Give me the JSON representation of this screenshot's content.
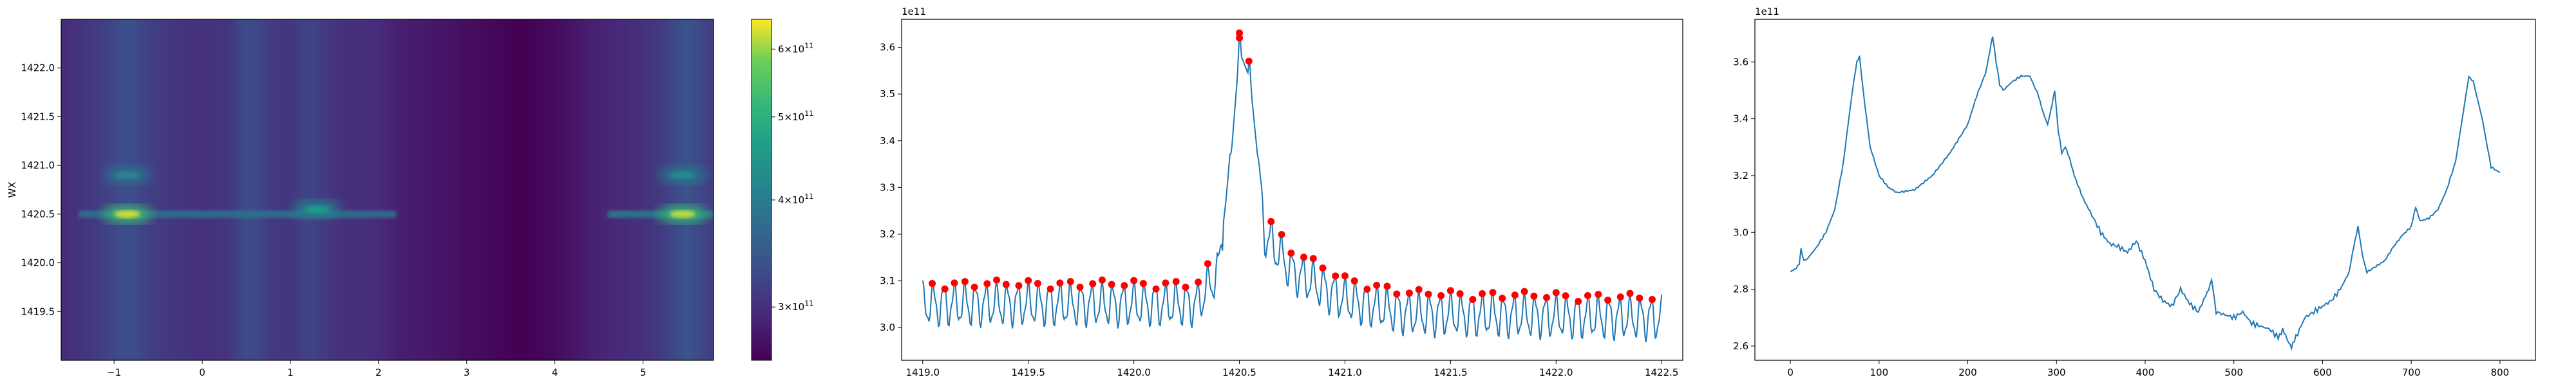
{
  "chart_data": [
    {
      "type": "heatmap",
      "ylabel": "WX",
      "xlabel": "",
      "title": "",
      "x_range": [
        -1.6,
        5.8
      ],
      "y_range": [
        1419.0,
        1422.5
      ],
      "x_ticks": [
        -1,
        0,
        1,
        2,
        3,
        4,
        5
      ],
      "x_tick_labels": [
        "−1",
        "0",
        "1",
        "2",
        "3",
        "4",
        "5"
      ],
      "y_ticks": [
        1419.5,
        1420.0,
        1420.5,
        1421.0,
        1421.5,
        1422.0
      ],
      "y_tick_labels": [
        "1419.5",
        "1420.0",
        "1420.5",
        "1421.0",
        "1421.5",
        "1422.0"
      ],
      "colormap": "viridis",
      "colorbar": {
        "scale": "log",
        "range": [
          260000000000.0,
          650000000000.0
        ],
        "ticks": [
          300000000000.0,
          400000000000.0,
          500000000000.0,
          600000000000.0
        ],
        "tick_labels": [
          {
            "mantissa": "3×10",
            "exp": "11"
          },
          {
            "mantissa": "4×10",
            "exp": "11"
          },
          {
            "mantissa": "5×10",
            "exp": "11"
          },
          {
            "mantissa": "6×10",
            "exp": "11"
          }
        ]
      },
      "column_profile": {
        "x": [
          -1.6,
          -1.2,
          -1.0,
          -0.85,
          -0.6,
          -0.3,
          0.0,
          0.3,
          0.5,
          0.6,
          0.8,
          1.0,
          1.2,
          1.4,
          1.6,
          1.8,
          2.0,
          2.2,
          2.5,
          2.8,
          3.0,
          3.3,
          3.6,
          3.9,
          4.2,
          4.4,
          4.6,
          4.8,
          5.0,
          5.2,
          5.4,
          5.5,
          5.6,
          5.8
        ],
        "value": [
          295000000000.0,
          310000000000.0,
          325000000000.0,
          335000000000.0,
          315000000000.0,
          305000000000.0,
          300000000000.0,
          305000000000.0,
          330000000000.0,
          325000000000.0,
          310000000000.0,
          305000000000.0,
          320000000000.0,
          310000000000.0,
          300000000000.0,
          300000000000.0,
          295000000000.0,
          285000000000.0,
          280000000000.0,
          275000000000.0,
          270000000000.0,
          265000000000.0,
          260000000000.0,
          265000000000.0,
          275000000000.0,
          285000000000.0,
          290000000000.0,
          295000000000.0,
          300000000000.0,
          310000000000.0,
          330000000000.0,
          340000000000.0,
          330000000000.0,
          310000000000.0
        ]
      },
      "hotspots": [
        {
          "x": -0.85,
          "y": 1420.5,
          "value": 630000000000.0
        },
        {
          "x": -0.85,
          "y": 1420.9,
          "value": 420000000000.0
        },
        {
          "x": 1.3,
          "y": 1420.55,
          "value": 460000000000.0
        },
        {
          "x": 5.45,
          "y": 1420.5,
          "value": 620000000000.0
        },
        {
          "x": 5.45,
          "y": 1420.9,
          "value": 430000000000.0
        }
      ]
    },
    {
      "type": "line",
      "title": "",
      "xlabel": "",
      "ylabel": "",
      "offset_label": "1e11",
      "xlim": [
        1418.9,
        1422.6
      ],
      "ylim": [
        293000000000.0,
        366000000000.0
      ],
      "x_ticks": [
        1419.0,
        1419.5,
        1420.0,
        1420.5,
        1421.0,
        1421.5,
        1422.0,
        1422.5
      ],
      "x_tick_labels": [
        "1419.0",
        "1419.5",
        "1420.0",
        "1420.5",
        "1421.0",
        "1421.5",
        "1422.0",
        "1422.5"
      ],
      "y_ticks": [
        300000000000.0,
        310000000000.0,
        320000000000.0,
        330000000000.0,
        340000000000.0,
        350000000000.0,
        360000000000.0
      ],
      "y_tick_labels": [
        "3.0",
        "3.1",
        "3.2",
        "3.3",
        "3.4",
        "3.5",
        "3.6"
      ],
      "series_color": "#1f77b4",
      "marker_color": "#ff0000",
      "series": [
        {
          "x_start": 1419.0,
          "x_end": 1422.5,
          "oscillation_period": 0.05,
          "baseline": [
            [
              1419.0,
              305000000000.0
            ],
            [
              1420.3,
              305000000000.0
            ],
            [
              1420.4,
              312000000000.0
            ],
            [
              1420.46,
              335000000000.0
            ],
            [
              1420.5,
              358000000000.0
            ],
            [
              1420.55,
              352000000000.0
            ],
            [
              1420.62,
              320000000000.0
            ],
            [
              1420.75,
              312000000000.0
            ],
            [
              1421.0,
              306000000000.0
            ],
            [
              1421.3,
              303000000000.0
            ],
            [
              1422.5,
              302000000000.0
            ]
          ],
          "amplitude": 4000000000.0,
          "peak": {
            "x": 1420.5,
            "y": 362000000000.0
          }
        }
      ]
    },
    {
      "type": "line",
      "title": "",
      "xlabel": "",
      "ylabel": "",
      "offset_label": "1e11",
      "xlim": [
        -40,
        840
      ],
      "ylim": [
        255000000000.0,
        375000000000.0
      ],
      "x_ticks": [
        0,
        100,
        200,
        300,
        400,
        500,
        600,
        700,
        800
      ],
      "x_tick_labels": [
        "0",
        "100",
        "200",
        "300",
        "400",
        "500",
        "600",
        "700",
        "800"
      ],
      "y_ticks": [
        260000000000.0,
        280000000000.0,
        300000000000.0,
        320000000000.0,
        340000000000.0,
        360000000000.0
      ],
      "y_tick_labels": [
        "2.6",
        "2.8",
        "3.0",
        "3.2",
        "3.4",
        "3.6"
      ],
      "series_color": "#1f77b4",
      "series": [
        {
          "x": [
            0,
            5,
            10,
            12,
            15,
            20,
            30,
            40,
            50,
            60,
            65,
            70,
            75,
            78,
            82,
            90,
            100,
            110,
            120,
            140,
            160,
            180,
            200,
            210,
            220,
            225,
            228,
            232,
            236,
            240,
            250,
            260,
            270,
            280,
            285,
            290,
            295,
            298,
            302,
            306,
            310,
            315,
            320,
            330,
            340,
            350,
            360,
            370,
            380,
            390,
            400,
            410,
            420,
            430,
            440,
            450,
            460,
            470,
            475,
            480,
            490,
            500,
            510,
            520,
            530,
            540,
            550,
            555,
            560,
            565,
            570,
            580,
            590,
            600,
            610,
            620,
            630,
            635,
            640,
            645,
            650,
            660,
            670,
            680,
            690,
            700,
            705,
            710,
            720,
            730,
            740,
            750,
            760,
            765,
            770,
            780,
            790,
            800
          ],
          "y": [
            286000000000.0,
            287000000000.0,
            289000000000.0,
            294000000000.0,
            290000000000.0,
            291000000000.0,
            295000000000.0,
            300000000000.0,
            308000000000.0,
            325000000000.0,
            338000000000.0,
            350000000000.0,
            360000000000.0,
            362000000000.0,
            350000000000.0,
            330000000000.0,
            320000000000.0,
            316000000000.0,
            314000000000.0,
            315000000000.0,
            320000000000.0,
            328000000000.0,
            338000000000.0,
            348000000000.0,
            356000000000.0,
            364000000000.0,
            369000000000.0,
            360000000000.0,
            352000000000.0,
            350000000000.0,
            353000000000.0,
            355000000000.0,
            355000000000.0,
            348000000000.0,
            342000000000.0,
            338000000000.0,
            345000000000.0,
            350000000000.0,
            336000000000.0,
            328000000000.0,
            330000000000.0,
            326000000000.0,
            320000000000.0,
            312000000000.0,
            306000000000.0,
            300000000000.0,
            296000000000.0,
            295000000000.0,
            293000000000.0,
            297000000000.0,
            290000000000.0,
            280000000000.0,
            276000000000.0,
            274000000000.0,
            280000000000.0,
            275000000000.0,
            272000000000.0,
            279000000000.0,
            283000000000.0,
            272000000000.0,
            271000000000.0,
            270000000000.0,
            272000000000.0,
            268000000000.0,
            267000000000.0,
            266000000000.0,
            263000000000.0,
            266000000000.0,
            262000000000.0,
            260000000000.0,
            263000000000.0,
            270000000000.0,
            272000000000.0,
            274000000000.0,
            276000000000.0,
            280000000000.0,
            286000000000.0,
            295000000000.0,
            302000000000.0,
            292000000000.0,
            286000000000.0,
            288000000000.0,
            290000000000.0,
            295000000000.0,
            299000000000.0,
            302000000000.0,
            309000000000.0,
            304000000000.0,
            305000000000.0,
            308000000000.0,
            315000000000.0,
            325000000000.0,
            345000000000.0,
            355000000000.0,
            353000000000.0,
            340000000000.0,
            323000000000.0,
            321000000000.0
          ]
        }
      ]
    }
  ]
}
